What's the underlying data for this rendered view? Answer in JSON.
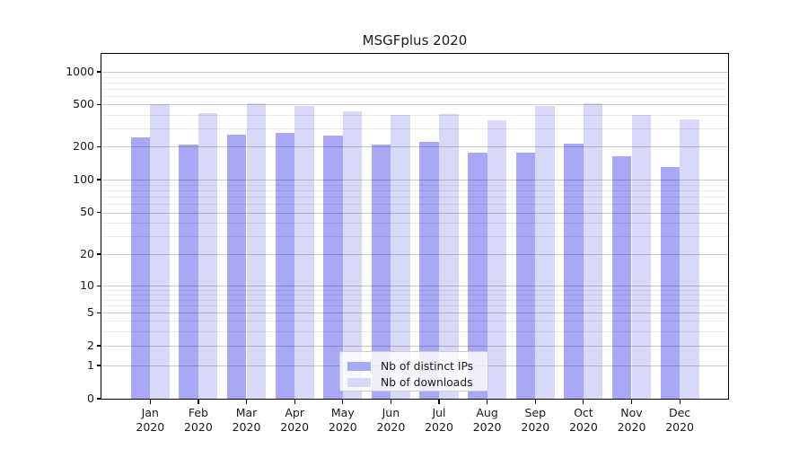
{
  "chart_data": {
    "type": "bar",
    "title": "MSGFplus 2020",
    "categories": [
      "Jan",
      "Feb",
      "Mar",
      "Apr",
      "May",
      "Jun",
      "Jul",
      "Aug",
      "Sep",
      "Oct",
      "Nov",
      "Dec"
    ],
    "x_year": "2020",
    "series": [
      {
        "name": "Nb of distinct IPs",
        "color": "#a8a8f6",
        "values": [
          245,
          210,
          260,
          272,
          256,
          209,
          224,
          178,
          177,
          215,
          164,
          131
        ]
      },
      {
        "name": "Nb of downloads",
        "color": "#d8d8f9",
        "values": [
          505,
          415,
          515,
          480,
          430,
          400,
          410,
          355,
          480,
          515,
          395,
          365
        ]
      }
    ],
    "xlabel": "",
    "ylabel": "",
    "yscale": "symlog",
    "y_ticks": [
      0,
      1,
      2,
      5,
      10,
      20,
      50,
      100,
      200,
      500,
      1000
    ],
    "ylim": [
      0,
      1450
    ],
    "grid": true,
    "legend_position": "lower center"
  }
}
